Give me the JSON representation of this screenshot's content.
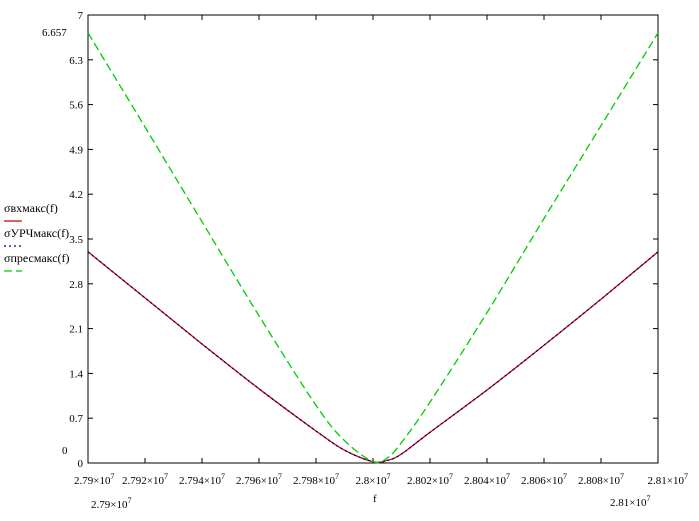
{
  "chart_data": {
    "type": "line",
    "xlabel": "f",
    "ylabel": "",
    "xlim": [
      27900000,
      28100000
    ],
    "ylim": [
      0,
      7
    ],
    "x_ticks": [
      {
        "value": 27900000,
        "mant": "2.79",
        "exp": "7"
      },
      {
        "value": 27920000,
        "mant": "2.792",
        "exp": "7"
      },
      {
        "value": 27940000,
        "mant": "2.794",
        "exp": "7"
      },
      {
        "value": 27960000,
        "mant": "2.796",
        "exp": "7"
      },
      {
        "value": 27980000,
        "mant": "2.798",
        "exp": "7"
      },
      {
        "value": 28000000,
        "mant": "2.8",
        "exp": "7"
      },
      {
        "value": 28020000,
        "mant": "2.802",
        "exp": "7"
      },
      {
        "value": 28040000,
        "mant": "2.804",
        "exp": "7"
      },
      {
        "value": 28060000,
        "mant": "2.806",
        "exp": "7"
      },
      {
        "value": 28080000,
        "mant": "2.808",
        "exp": "7"
      },
      {
        "value": 28100000,
        "mant": "2.81",
        "exp": "7"
      }
    ],
    "y_ticks": [
      "0",
      "0.7",
      "1.4",
      "2.1",
      "2.8",
      "3.5",
      "4.2",
      "4.9",
      "5.6",
      "6.3",
      "7"
    ],
    "y_range_labels": {
      "top": "6.657",
      "bottom": "0"
    },
    "x_range_labels": {
      "left_mant": "2.79",
      "left_exp": "7",
      "right_mant": "2.81",
      "right_exp": "7"
    },
    "series": [
      {
        "name": "σвхмакс(f)",
        "color": "#cc0000",
        "style": "solid",
        "x": [
          27900000,
          27920000,
          27940000,
          27960000,
          27980000,
          27990000,
          28000000,
          28005000,
          28010000,
          28020000,
          28040000,
          28060000,
          28080000,
          28100000
        ],
        "values": [
          3.3,
          2.58,
          1.86,
          1.16,
          0.5,
          0.2,
          0.02,
          0.04,
          0.14,
          0.48,
          1.14,
          1.84,
          2.56,
          3.3
        ]
      },
      {
        "name": "σУРЧмакс(f)",
        "color": "#000080",
        "style": "dotted",
        "x": [
          27900000,
          27920000,
          27940000,
          27960000,
          27980000,
          27990000,
          28000000,
          28005000,
          28010000,
          28020000,
          28040000,
          28060000,
          28080000,
          28100000
        ],
        "values": [
          3.3,
          2.58,
          1.86,
          1.16,
          0.5,
          0.2,
          0.02,
          0.04,
          0.14,
          0.48,
          1.14,
          1.84,
          2.56,
          3.3
        ]
      },
      {
        "name": "σпресмакс(f)",
        "color": "#00cc00",
        "style": "dashed",
        "x": [
          27900000,
          27920000,
          27940000,
          27960000,
          27980000,
          27990000,
          28000000,
          28005000,
          28010000,
          28020000,
          28040000,
          28060000,
          28080000,
          28100000
        ],
        "values": [
          6.72,
          5.25,
          3.77,
          2.3,
          0.9,
          0.35,
          0.02,
          0.08,
          0.32,
          0.95,
          2.35,
          3.82,
          5.27,
          6.72
        ]
      }
    ]
  }
}
